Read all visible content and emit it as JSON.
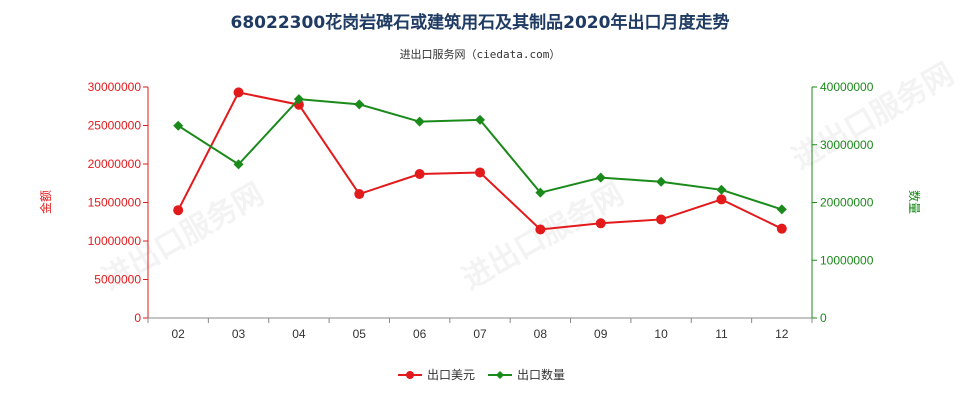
{
  "chart_data": {
    "type": "line",
    "title": "68022300花岗岩碑石或建筑用石及其制品2020年出口月度走势",
    "subtitle": "进出口服务网（ciedata.com）",
    "watermark": "进出口服务网",
    "categories": [
      "02",
      "03",
      "04",
      "05",
      "06",
      "07",
      "08",
      "09",
      "10",
      "11",
      "12"
    ],
    "y_left": {
      "label": "金额",
      "ticks": [
        "0",
        "5000000",
        "10000000",
        "15000000",
        "20000000",
        "25000000",
        "30000000"
      ],
      "ylim": [
        0,
        30000000
      ],
      "color": "#e31a1c"
    },
    "y_right": {
      "label": "数量",
      "ticks": [
        "0",
        "10000000",
        "20000000",
        "30000000",
        "40000000"
      ],
      "ylim": [
        0,
        40000000
      ],
      "color": "#1a8a1a"
    },
    "series": [
      {
        "name": "出口美元",
        "axis": "left",
        "color": "#e31a1c",
        "marker": "circle",
        "values": [
          14000000,
          29300000,
          27700000,
          16100000,
          18700000,
          18900000,
          11500000,
          12300000,
          12800000,
          15400000,
          11600000
        ]
      },
      {
        "name": "出口数量",
        "axis": "right",
        "color": "#1a8a1a",
        "marker": "diamond",
        "values": [
          33300000,
          26600000,
          37900000,
          37000000,
          34000000,
          34300000,
          21700000,
          24300000,
          23600000,
          22200000,
          18800000
        ]
      }
    ],
    "grid": false,
    "legend": "bottom-center"
  }
}
